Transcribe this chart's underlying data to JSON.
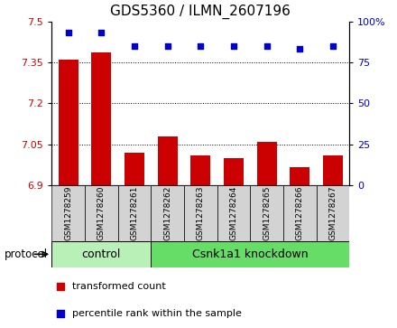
{
  "title": "GDS5360 / ILMN_2607196",
  "samples": [
    "GSM1278259",
    "GSM1278260",
    "GSM1278261",
    "GSM1278262",
    "GSM1278263",
    "GSM1278264",
    "GSM1278265",
    "GSM1278266",
    "GSM1278267"
  ],
  "transformed_count": [
    7.36,
    7.385,
    7.02,
    7.08,
    7.01,
    7.0,
    7.06,
    6.965,
    7.01
  ],
  "percentile_rank": [
    93,
    93,
    85,
    85,
    85,
    85,
    85,
    83,
    85
  ],
  "ylim_left": [
    6.9,
    7.5
  ],
  "ylim_right": [
    0,
    100
  ],
  "yticks_left": [
    6.9,
    7.05,
    7.2,
    7.35,
    7.5
  ],
  "yticks_right": [
    0,
    25,
    50,
    75,
    100
  ],
  "bar_color": "#cc0000",
  "dot_color": "#0000cc",
  "bg_color": "#ffffff",
  "control_group_size": 3,
  "knockdown_group_size": 6,
  "control_label": "control",
  "knockdown_label": "Csnk1a1 knockdown",
  "protocol_label": "protocol",
  "legend_bar_label": "transformed count",
  "legend_dot_label": "percentile rank within the sample",
  "group_bg_color_control": "#b8f0b8",
  "group_bg_color_kd": "#66dd66",
  "sample_box_color": "#d3d3d3",
  "tick_label_color_left": "#cc0000",
  "tick_label_color_right": "#0000cc",
  "bar_width": 0.6,
  "dot_size": 25,
  "title_fontsize": 11,
  "tick_fontsize": 8,
  "sample_fontsize": 6.5,
  "group_fontsize": 9,
  "legend_fontsize": 8
}
